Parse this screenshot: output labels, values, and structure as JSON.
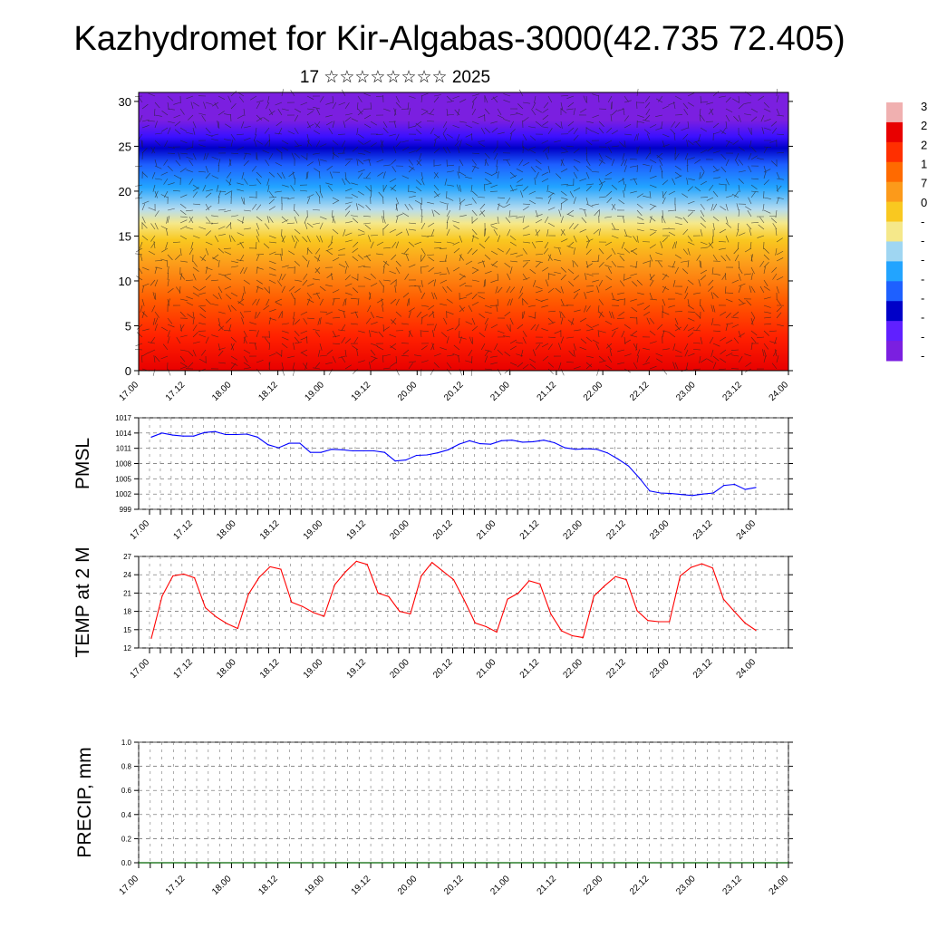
{
  "title": "Kazhydromet for Kir-Algabas-3000(42.735 72.405)",
  "subtitle": "17 ☆☆☆☆☆☆☆☆ 2025",
  "colors": {
    "pmsl_line": "#0000ff",
    "temp_line": "#ff0000",
    "precip_line": "#006400",
    "axis": "#000000",
    "colormap": [
      "#7b1fe0",
      "#6020ff",
      "#0000c8",
      "#1e60ff",
      "#22a4ff",
      "#9fd6f2",
      "#f5e88a",
      "#f9c820",
      "#fc9a1a",
      "#ff6a00",
      "#ff2f00",
      "#e80000",
      "#f0b0b0"
    ]
  },
  "chart_data": [
    {
      "type": "heatmap",
      "name": "wind-temperature cross-section",
      "time_labels": [
        "17.00",
        "17.12",
        "18.00",
        "18.12",
        "19.00",
        "19.12",
        "20.00",
        "20.12",
        "21.00",
        "21.12",
        "22.00",
        "22.12",
        "23.00",
        "23.12",
        "24.00"
      ],
      "y_ticks": [
        0,
        5,
        10,
        15,
        20,
        25,
        30
      ],
      "ylim": [
        0,
        31
      ],
      "colorbar_labels": [
        "3",
        "2",
        "2",
        "1",
        "7",
        "0",
        "-",
        "-",
        "-",
        "-",
        "-",
        "-",
        "-",
        "-"
      ]
    },
    {
      "type": "line",
      "ylabel": "PMSL",
      "ylim": [
        999,
        1017
      ],
      "y_ticks": [
        999,
        1002,
        1005,
        1008,
        1011,
        1014,
        1017
      ],
      "x_labels": [
        "17.00",
        "17.12",
        "18.00",
        "18.12",
        "19.00",
        "19.12",
        "20.00",
        "20.12",
        "21.00",
        "21.12",
        "22.00",
        "22.12",
        "23.00",
        "23.12",
        "24.00"
      ],
      "values": [
        1013.2,
        1014.0,
        1013.6,
        1013.4,
        1013.4,
        1014.1,
        1014.3,
        1013.7,
        1013.7,
        1013.8,
        1013.2,
        1011.7,
        1011.1,
        1012.0,
        1012.0,
        1010.2,
        1010.2,
        1010.8,
        1010.7,
        1010.5,
        1010.5,
        1010.5,
        1010.2,
        1008.5,
        1008.7,
        1009.6,
        1009.7,
        1010.1,
        1010.7,
        1011.8,
        1012.5,
        1011.9,
        1011.8,
        1012.5,
        1012.6,
        1012.2,
        1012.3,
        1012.6,
        1012.1,
        1011.1,
        1010.8,
        1010.9,
        1010.8,
        1010.1,
        1008.9,
        1007.5,
        1005.2,
        1002.6,
        1002.2,
        1002.1,
        1001.9,
        1001.7,
        1002.0,
        1002.2,
        1003.7,
        1003.9,
        1002.9,
        1003.3
      ]
    },
    {
      "type": "line",
      "ylabel": "TEMP at 2 M",
      "ylim": [
        12,
        27
      ],
      "y_ticks": [
        12,
        15,
        18,
        21,
        24,
        27
      ],
      "x_labels": [
        "17.00",
        "17.12",
        "18.00",
        "18.12",
        "19.00",
        "19.12",
        "20.00",
        "20.12",
        "21.00",
        "21.12",
        "22.00",
        "22.12",
        "23.00",
        "23.12",
        "24.00"
      ],
      "values": [
        13.6,
        20.5,
        23.8,
        24.1,
        23.5,
        18.6,
        17.1,
        16.0,
        15.2,
        20.8,
        23.6,
        25.3,
        24.9,
        19.5,
        18.8,
        17.8,
        17.2,
        22.4,
        24.5,
        26.2,
        25.7,
        21.0,
        20.4,
        18.0,
        17.6,
        23.8,
        26.0,
        24.6,
        23.2,
        19.8,
        16.1,
        15.5,
        14.6,
        20.0,
        21.0,
        23.0,
        22.5,
        17.6,
        14.8,
        14.0,
        13.7,
        20.5,
        22.2,
        23.7,
        23.2,
        18.1,
        16.5,
        16.3,
        16.3,
        23.8,
        25.2,
        25.8,
        25.1,
        20.0,
        18.0,
        16.1,
        14.9
      ]
    },
    {
      "type": "line",
      "ylabel": "PRECIP, mm",
      "ylim": [
        0,
        1.0
      ],
      "y_ticks": [
        "0.0",
        "0.2",
        "0.4",
        "0.6",
        "0.8",
        "1.0"
      ],
      "x_labels": [
        "17.00",
        "17.12",
        "18.00",
        "18.12",
        "19.00",
        "19.12",
        "20.00",
        "20.12",
        "21.00",
        "21.12",
        "22.00",
        "22.12",
        "23.00",
        "23.12",
        "24.00"
      ],
      "values": [
        0,
        0,
        0,
        0,
        0,
        0,
        0,
        0,
        0,
        0,
        0,
        0,
        0,
        0,
        0,
        0,
        0,
        0,
        0,
        0,
        0,
        0,
        0,
        0,
        0,
        0,
        0,
        0,
        0,
        0,
        0,
        0,
        0,
        0,
        0,
        0,
        0,
        0,
        0,
        0,
        0,
        0,
        0,
        0,
        0,
        0,
        0,
        0,
        0,
        0,
        0,
        0,
        0,
        0,
        0,
        0,
        0
      ]
    }
  ]
}
